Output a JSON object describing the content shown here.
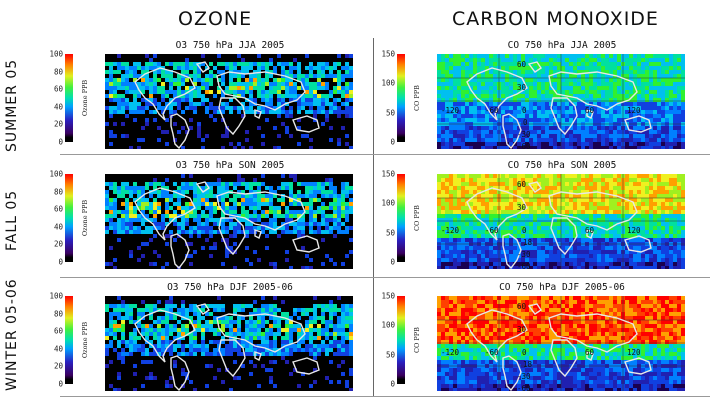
{
  "headers": {
    "ozone": "OZONE",
    "carbon_monoxide": "CARBON MONOXIDE"
  },
  "rows": [
    {
      "label": "SUMMER 05",
      "ozone": {
        "title": "O3 750 hPa JJA 2005",
        "unit": "Ozone PPB",
        "ticks": [
          "100",
          "80",
          "60",
          "40",
          "20",
          "0"
        ]
      },
      "co": {
        "title": "CO 750 hPa JJA 2005",
        "unit": "CO PPB",
        "ticks": [
          "150",
          "100",
          "50",
          "0"
        ],
        "grid_labels": [
          "60",
          "30",
          "-120",
          "-60",
          "0",
          "60",
          "120",
          "0",
          "-30",
          "-60"
        ]
      }
    },
    {
      "label": "FALL 05",
      "ozone": {
        "title": "O3 750 hPa SON 2005",
        "unit": "Ozone PPB",
        "ticks": [
          "100",
          "80",
          "60",
          "40",
          "20",
          "0"
        ]
      },
      "co": {
        "title": "CO 750 hPa SON 2005",
        "unit": "CO PPB",
        "ticks": [
          "150",
          "100",
          "50",
          "0"
        ],
        "grid_labels": [
          "60",
          "30",
          "-120",
          "-60",
          "0",
          "60",
          "120",
          "18",
          "-30",
          "-60"
        ]
      }
    },
    {
      "label": "WINTER 05-06",
      "ozone": {
        "title": "O3 750 hPa DJF 2005-06",
        "unit": "Ozone PPB",
        "ticks": [
          "100",
          "80",
          "60",
          "40",
          "20",
          "0"
        ]
      },
      "co": {
        "title": "CO 750 hPa DJF 2005-06",
        "unit": "CO PPB",
        "ticks": [
          "150",
          "100",
          "50",
          "0"
        ],
        "grid_labels": [
          "60",
          "30",
          "-120",
          "-60",
          "0",
          "60",
          "120",
          "18",
          "-30",
          "-60"
        ]
      }
    }
  ]
}
